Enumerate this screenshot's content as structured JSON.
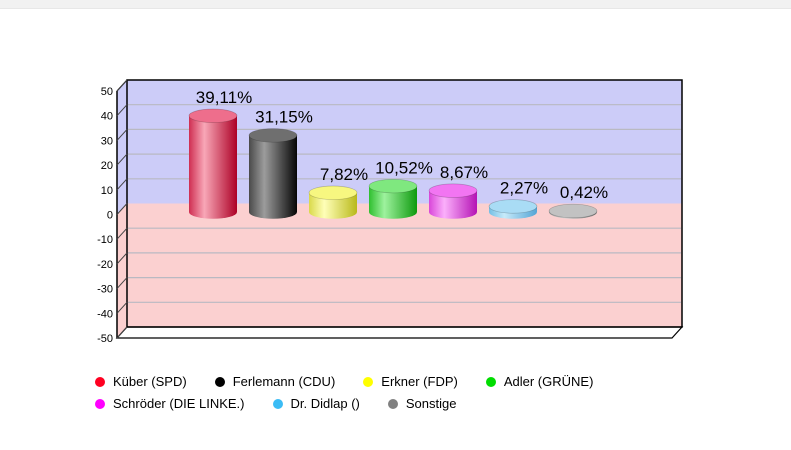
{
  "chart_data": {
    "type": "bar",
    "style": "3d-cylinder-vertical",
    "title": "",
    "xlabel": "",
    "ylabel": "",
    "categories": [
      "Küber (SPD)",
      "Ferlemann (CDU)",
      "Erkner (FDP)",
      "Adler (GRÜNE)",
      "Schröder (DIE LINKE.)",
      "Dr. Didlap ()",
      "Sonstige"
    ],
    "values": [
      39.11,
      31.15,
      7.82,
      10.52,
      8.67,
      2.27,
      0.42
    ],
    "value_labels": [
      "39,11%",
      "31,15%",
      "7,82%",
      "10,52%",
      "8,67%",
      "2,27%",
      "0,42%"
    ],
    "ylim": [
      -50,
      50
    ],
    "ytick_interval": 10,
    "ytick_labels": [
      "50",
      "40",
      "30",
      "20",
      "10",
      "0",
      "-10",
      "-20",
      "-30",
      "-40",
      "-50"
    ],
    "grid": true,
    "legend_position": "bottom",
    "legend_entries": [
      {
        "label": "Küber (SPD)",
        "color": "#ff0021"
      },
      {
        "label": "Ferlemann (CDU)",
        "color": "#000000"
      },
      {
        "label": "Erkner (FDP)",
        "color": "#ffff00"
      },
      {
        "label": "Adler (GRÜNE)",
        "color": "#00dd00"
      },
      {
        "label": "Schröder (DIE LINKE.)",
        "color": "#ff00ff"
      },
      {
        "label": "Dr. Didlap ()",
        "color": "#3bbcf5"
      },
      {
        "label": "Sonstige",
        "color": "#808080"
      }
    ],
    "colors": {
      "wall_positive": "#ccccf8",
      "wall_negative": "#fbd0d0",
      "gridline": "#b9b9c2",
      "axis": "#000000",
      "tick_label": "#000000",
      "floor": "#ffffff",
      "value_label": "#000000",
      "cylinders": [
        {
          "edge": "#cf2e52",
          "highlight": "#f8a7b7",
          "dark": "#ad0026",
          "top": "#ee6e8c"
        },
        {
          "edge": "#4a4a4a",
          "highlight": "#9c9c9c",
          "dark": "#060606",
          "top": "#6f6f6f"
        },
        {
          "edge": "#d9d94a",
          "highlight": "#ffffb8",
          "dark": "#b9b91a",
          "top": "#f7f780"
        },
        {
          "edge": "#2fbf2f",
          "highlight": "#9ef29e",
          "dark": "#0e9a0e",
          "top": "#7fe87f"
        },
        {
          "edge": "#d946d9",
          "highlight": "#fbaffb",
          "dark": "#b513b5",
          "top": "#f275f2"
        },
        {
          "edge": "#74bfe4",
          "highlight": "#c6eafa",
          "dark": "#55a5d5",
          "top": "#a9dcf5"
        },
        {
          "edge": "#9a9a9a",
          "highlight": "#d6d6d6",
          "dark": "#767676",
          "top": "#c2c2c2"
        }
      ]
    }
  }
}
